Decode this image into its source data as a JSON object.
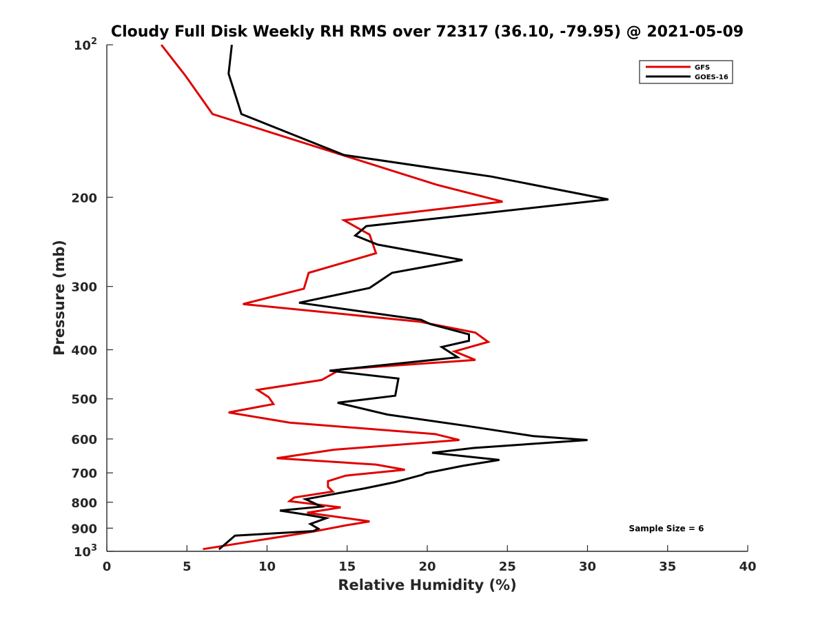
{
  "chart_data": {
    "type": "line",
    "title": "Cloudy Full Disk Weekly RH RMS over 72317 (36.10, -79.95) @ 2021-05-09",
    "xlabel": "Relative Humidity (%)",
    "ylabel": "Pressure (mb)",
    "xlim": [
      0,
      40
    ],
    "ylim": [
      100,
      1000
    ],
    "y_scale": "log",
    "y_reversed": true,
    "grid": false,
    "legend_position": "top-right",
    "x_ticks": [
      0,
      5,
      10,
      15,
      20,
      25,
      30,
      35,
      40
    ],
    "y_ticks": [
      {
        "value": 100,
        "base": "10",
        "exp": "2"
      },
      {
        "value": 200,
        "label": "200"
      },
      {
        "value": 300,
        "label": "300"
      },
      {
        "value": 400,
        "label": "400"
      },
      {
        "value": 500,
        "label": "500"
      },
      {
        "value": 600,
        "label": "600"
      },
      {
        "value": 700,
        "label": "700"
      },
      {
        "value": 800,
        "label": "800"
      },
      {
        "value": 900,
        "label": "900"
      },
      {
        "value": 1000,
        "base": "10",
        "exp": "3"
      }
    ],
    "annotation": "Sample Size = 6",
    "series": [
      {
        "name": "GFS",
        "color": "#e00000",
        "points": [
          [
            3.4,
            100
          ],
          [
            4.9,
            115
          ],
          [
            6.6,
            137
          ],
          [
            20.6,
            189
          ],
          [
            24.7,
            204
          ],
          [
            14.8,
            222
          ],
          [
            16.4,
            237
          ],
          [
            16.8,
            258
          ],
          [
            12.6,
            282
          ],
          [
            12.3,
            303
          ],
          [
            8.5,
            325
          ],
          [
            19.5,
            352
          ],
          [
            23.0,
            370
          ],
          [
            23.8,
            386
          ],
          [
            21.7,
            403
          ],
          [
            23.0,
            419
          ],
          [
            14.6,
            437
          ],
          [
            13.4,
            459
          ],
          [
            9.4,
            480
          ],
          [
            10.1,
            496
          ],
          [
            10.4,
            512
          ],
          [
            7.6,
            532
          ],
          [
            11.4,
            557
          ],
          [
            20.5,
            587
          ],
          [
            22.0,
            603
          ],
          [
            14.2,
            630
          ],
          [
            10.6,
            655
          ],
          [
            16.8,
            674
          ],
          [
            18.6,
            690
          ],
          [
            14.9,
            709
          ],
          [
            13.8,
            727
          ],
          [
            13.8,
            746
          ],
          [
            14.1,
            762
          ],
          [
            11.7,
            783
          ],
          [
            11.4,
            796
          ],
          [
            14.6,
            819
          ],
          [
            12.5,
            839
          ],
          [
            16.2,
            871
          ],
          [
            16.4,
            873
          ],
          [
            14.9,
            889
          ],
          [
            12.9,
            914
          ],
          [
            6.0,
            990
          ]
        ]
      },
      {
        "name": "GOES-16",
        "color": "#000000",
        "points": [
          [
            7.8,
            100
          ],
          [
            7.6,
            114
          ],
          [
            8.4,
            137
          ],
          [
            14.8,
            165
          ],
          [
            24.0,
            182
          ],
          [
            31.3,
            202
          ],
          [
            16.2,
            228
          ],
          [
            15.5,
            238
          ],
          [
            16.9,
            248
          ],
          [
            22.2,
            266
          ],
          [
            17.8,
            282
          ],
          [
            16.4,
            302
          ],
          [
            12.0,
            323
          ],
          [
            19.6,
            349
          ],
          [
            20.2,
            356
          ],
          [
            22.6,
            373
          ],
          [
            22.6,
            384
          ],
          [
            20.9,
            395
          ],
          [
            21.9,
            414
          ],
          [
            13.9,
            440
          ],
          [
            18.2,
            456
          ],
          [
            18.0,
            493
          ],
          [
            14.4,
            509
          ],
          [
            17.5,
            537
          ],
          [
            22.4,
            565
          ],
          [
            26.6,
            592
          ],
          [
            30.0,
            603
          ],
          [
            22.9,
            625
          ],
          [
            20.3,
            639
          ],
          [
            24.5,
            660
          ],
          [
            22.2,
            678
          ],
          [
            19.9,
            701
          ],
          [
            19.7,
            706
          ],
          [
            18.0,
            730
          ],
          [
            16.1,
            751
          ],
          [
            12.8,
            785
          ],
          [
            12.4,
            789
          ],
          [
            13.4,
            816
          ],
          [
            10.8,
            831
          ],
          [
            12.4,
            846
          ],
          [
            13.7,
            860
          ],
          [
            12.7,
            883
          ],
          [
            13.2,
            902
          ],
          [
            12.9,
            912
          ],
          [
            8.0,
            931
          ],
          [
            7.0,
            991
          ]
        ]
      }
    ]
  }
}
